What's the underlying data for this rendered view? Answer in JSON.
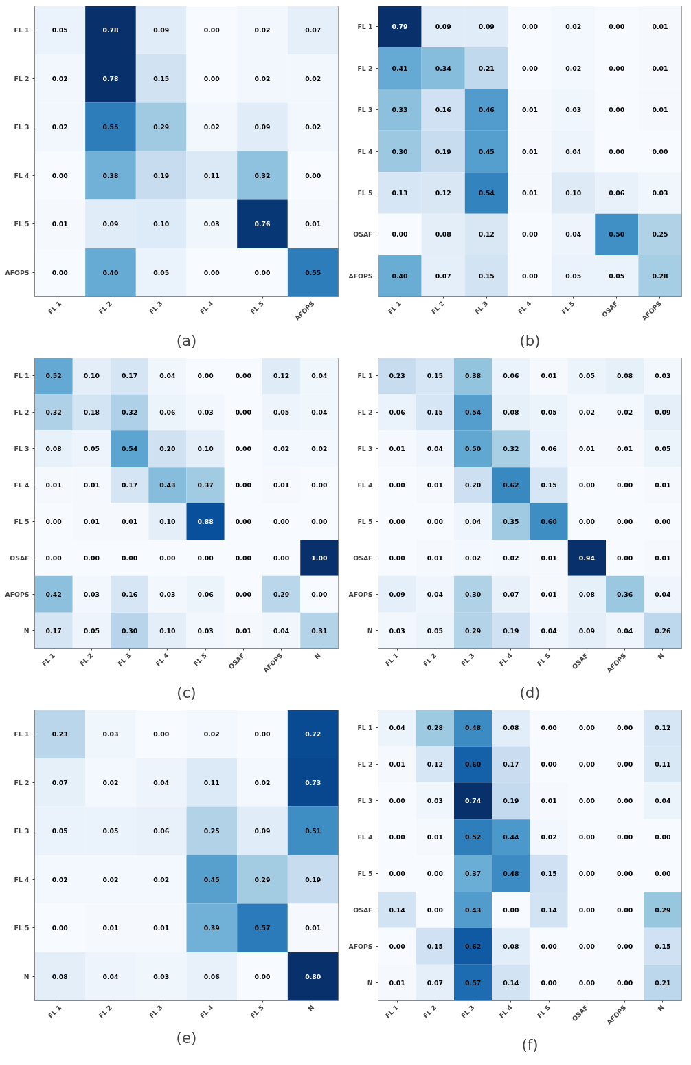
{
  "chart_data": [
    {
      "type": "heatmap",
      "title": "(a)",
      "categories": [
        "FL 1",
        "FL 2",
        "FL 3",
        "FL 4",
        "FL 5",
        "AFOPS"
      ],
      "y_categories": [
        "FL 1",
        "FL 2",
        "FL 3",
        "FL 4",
        "FL 5",
        "AFOPS"
      ],
      "cells": [
        [
          0.05,
          0.78,
          0.09,
          0.0,
          0.02,
          0.07
        ],
        [
          0.02,
          0.78,
          0.15,
          0.0,
          0.02,
          0.02
        ],
        [
          0.02,
          0.55,
          0.29,
          0.02,
          0.09,
          0.02
        ],
        [
          0.0,
          0.38,
          0.19,
          0.11,
          0.32,
          0.0
        ],
        [
          0.01,
          0.09,
          0.1,
          0.03,
          0.76,
          0.01
        ],
        [
          0.0,
          0.4,
          0.05,
          0.0,
          0.0,
          0.55
        ]
      ],
      "cell_labels": [
        [
          "0.05",
          "0.78",
          "0.09",
          "0.00",
          "0.02",
          "0.07"
        ],
        [
          "0.02",
          "0.78",
          "0.15",
          "0.00",
          "0.02",
          "0.02"
        ],
        [
          "0.02",
          "0.55",
          "0.29",
          "0.02",
          "0.09",
          "0.02"
        ],
        [
          "0.00",
          "0.38",
          "0.19",
          "0.11",
          "0.32",
          "0.00"
        ],
        [
          "0.01",
          "0.09",
          "0.10",
          "0.03",
          "0.76",
          "0.01"
        ],
        [
          "0.00",
          "0.40",
          "0.05",
          "0.00",
          "0.00",
          "0.55"
        ]
      ]
    },
    {
      "type": "heatmap",
      "title": "(b)",
      "categories": [
        "FL 1",
        "FL 2",
        "FL 3",
        "FL 4",
        "FL 5",
        "OSAF",
        "AFOPS"
      ],
      "y_categories": [
        "FL 1",
        "FL 2",
        "FL 3",
        "FL 4",
        "FL 5",
        "OSAF",
        "AFOPS"
      ],
      "cells": [
        [
          0.79,
          0.09,
          0.09,
          0.0,
          0.02,
          0.0,
          0.01
        ],
        [
          0.41,
          0.34,
          0.21,
          0.0,
          0.02,
          0.0,
          0.01
        ],
        [
          0.33,
          0.16,
          0.46,
          0.01,
          0.03,
          0.0,
          0.01
        ],
        [
          0.3,
          0.19,
          0.45,
          0.01,
          0.04,
          0.0,
          0.0
        ],
        [
          0.13,
          0.12,
          0.54,
          0.01,
          0.1,
          0.06,
          0.03
        ],
        [
          0.0,
          0.08,
          0.12,
          0.0,
          0.04,
          0.5,
          0.25
        ],
        [
          0.4,
          0.07,
          0.15,
          0.0,
          0.05,
          0.05,
          0.28
        ]
      ],
      "cell_labels": [
        [
          "0.79",
          "0.09",
          "0.09",
          "0.00",
          "0.02",
          "0.00",
          "0.01"
        ],
        [
          "0.41",
          "0.34",
          "0.21",
          "0.00",
          "0.02",
          "0.00",
          "0.01"
        ],
        [
          "0.33",
          "0.16",
          "0.46",
          "0.01",
          "0.03",
          "0.00",
          "0.01"
        ],
        [
          "0.30",
          "0.19",
          "0.45",
          "0.01",
          "0.04",
          "0.00",
          "0.00"
        ],
        [
          "0.13",
          "0.12",
          "0.54",
          "0.01",
          "0.10",
          "0.06",
          "0.03"
        ],
        [
          "0.00",
          "0.08",
          "0.12",
          "0.00",
          "0.04",
          "0.50",
          "0.25"
        ],
        [
          "0.40",
          "0.07",
          "0.15",
          "0.00",
          "0.05",
          "0.05",
          "0.28"
        ]
      ]
    },
    {
      "type": "heatmap",
      "title": "(c)",
      "categories": [
        "FL 1",
        "FL 2",
        "FL 3",
        "FL 4",
        "FL 5",
        "OSAF",
        "AFOPS",
        "N"
      ],
      "y_categories": [
        "FL 1",
        "FL 2",
        "FL 3",
        "FL 4",
        "FL 5",
        "OSAF",
        "AFOPS",
        "N"
      ],
      "cells": [
        [
          0.52,
          0.1,
          0.17,
          0.04,
          0.0,
          0.0,
          0.12,
          0.04
        ],
        [
          0.32,
          0.18,
          0.32,
          0.06,
          0.03,
          0.0,
          0.05,
          0.04
        ],
        [
          0.08,
          0.05,
          0.54,
          0.2,
          0.1,
          0.0,
          0.02,
          0.02
        ],
        [
          0.01,
          0.01,
          0.17,
          0.43,
          0.37,
          0.0,
          0.01,
          0.0
        ],
        [
          0.0,
          0.01,
          0.01,
          0.1,
          0.88,
          0.0,
          0.0,
          0.0
        ],
        [
          0.0,
          0.0,
          0.0,
          0.0,
          0.0,
          0.0,
          0.0,
          1.0
        ],
        [
          0.42,
          0.03,
          0.16,
          0.03,
          0.06,
          0.0,
          0.29,
          0.0
        ],
        [
          0.17,
          0.05,
          0.3,
          0.1,
          0.03,
          0.01,
          0.04,
          0.31
        ]
      ],
      "cell_labels": [
        [
          "0.52",
          "0.10",
          "0.17",
          "0.04",
          "0.00",
          "0.00",
          "0.12",
          "0.04"
        ],
        [
          "0.32",
          "0.18",
          "0.32",
          "0.06",
          "0.03",
          "0.00",
          "0.05",
          "0.04"
        ],
        [
          "0.08",
          "0.05",
          "0.54",
          "0.20",
          "0.10",
          "0.00",
          "0.02",
          "0.02"
        ],
        [
          "0.01",
          "0.01",
          "0.17",
          "0.43",
          "0.37",
          "0.00",
          "0.01",
          "0.00"
        ],
        [
          "0.00",
          "0.01",
          "0.01",
          "0.10",
          "0.88",
          "0.00",
          "0.00",
          "0.00"
        ],
        [
          "0.00",
          "0.00",
          "0.00",
          "0.00",
          "0.00",
          "0.00",
          "0.00",
          "1.00"
        ],
        [
          "0.42",
          "0.03",
          "0.16",
          "0.03",
          "0.06",
          "0.00",
          "0.29",
          "0.00"
        ],
        [
          "0.17",
          "0.05",
          "0.30",
          "0.10",
          "0.03",
          "0.01",
          "0.04",
          "0.31"
        ]
      ]
    },
    {
      "type": "heatmap",
      "title": "(d)",
      "categories": [
        "FL 1",
        "FL 2",
        "FL 3",
        "FL 4",
        "FL 5",
        "OSAF",
        "AFOPS",
        "N"
      ],
      "y_categories": [
        "FL 1",
        "FL 2",
        "FL 3",
        "FL 4",
        "FL 5",
        "OSAF",
        "AFOPS",
        "N"
      ],
      "cells": [
        [
          0.23,
          0.15,
          0.38,
          0.06,
          0.01,
          0.05,
          0.08,
          0.03
        ],
        [
          0.06,
          0.15,
          0.54,
          0.08,
          0.05,
          0.02,
          0.02,
          0.09
        ],
        [
          0.01,
          0.04,
          0.5,
          0.32,
          0.06,
          0.01,
          0.01,
          0.05
        ],
        [
          0.0,
          0.01,
          0.2,
          0.62,
          0.15,
          0.0,
          0.0,
          0.01
        ],
        [
          0.0,
          0.0,
          0.04,
          0.35,
          0.6,
          0.0,
          0.0,
          0.0
        ],
        [
          0.0,
          0.01,
          0.02,
          0.02,
          0.01,
          0.94,
          0.0,
          0.01
        ],
        [
          0.09,
          0.04,
          0.3,
          0.07,
          0.01,
          0.08,
          0.36,
          0.04
        ],
        [
          0.03,
          0.05,
          0.29,
          0.19,
          0.04,
          0.09,
          0.04,
          0.26
        ]
      ],
      "cell_labels": [
        [
          "0.23",
          "0.15",
          "0.38",
          "0.06",
          "0.01",
          "0.05",
          "0.08",
          "0.03"
        ],
        [
          "0.06",
          "0.15",
          "0.54",
          "0.08",
          "0.05",
          "0.02",
          "0.02",
          "0.09"
        ],
        [
          "0.01",
          "0.04",
          "0.50",
          "0.32",
          "0.06",
          "0.01",
          "0.01",
          "0.05"
        ],
        [
          "0.00",
          "0.01",
          "0.20",
          "0.62",
          "0.15",
          "0.00",
          "0.00",
          "0.01"
        ],
        [
          "0.00",
          "0.00",
          "0.04",
          "0.35",
          "0.60",
          "0.00",
          "0.00",
          "0.00"
        ],
        [
          "0.00",
          "0.01",
          "0.02",
          "0.02",
          "0.01",
          "0.94",
          "0.00",
          "0.01"
        ],
        [
          "0.09",
          "0.04",
          "0.30",
          "0.07",
          "0.01",
          "0.08",
          "0.36",
          "0.04"
        ],
        [
          "0.03",
          "0.05",
          "0.29",
          "0.19",
          "0.04",
          "0.09",
          "0.04",
          "0.26"
        ]
      ]
    },
    {
      "type": "heatmap",
      "title": "(e)",
      "categories": [
        "FL 1",
        "FL 2",
        "FL 3",
        "FL 4",
        "FL 5",
        "N"
      ],
      "y_categories": [
        "FL 1",
        "FL 2",
        "FL 3",
        "FL 4",
        "FL 5",
        "N"
      ],
      "cells": [
        [
          0.23,
          0.03,
          0.0,
          0.02,
          0.0,
          0.72
        ],
        [
          0.07,
          0.02,
          0.04,
          0.11,
          0.02,
          0.73
        ],
        [
          0.05,
          0.05,
          0.06,
          0.25,
          0.09,
          0.51
        ],
        [
          0.02,
          0.02,
          0.02,
          0.45,
          0.29,
          0.19
        ],
        [
          0.0,
          0.01,
          0.01,
          0.39,
          0.57,
          0.01
        ],
        [
          0.08,
          0.04,
          0.03,
          0.06,
          0.0,
          0.8
        ]
      ],
      "cell_labels": [
        [
          "0.23",
          "0.03",
          "0.00",
          "0.02",
          "0.00",
          "0.72"
        ],
        [
          "0.07",
          "0.02",
          "0.04",
          "0.11",
          "0.02",
          "0.73"
        ],
        [
          "0.05",
          "0.05",
          "0.06",
          "0.25",
          "0.09",
          "0.51"
        ],
        [
          "0.02",
          "0.02",
          "0.02",
          "0.45",
          "0.29",
          "0.19"
        ],
        [
          "0.00",
          "0.01",
          "0.01",
          "0.39",
          "0.57",
          "0.01"
        ],
        [
          "0.08",
          "0.04",
          "0.03",
          "0.06",
          "0.00",
          "0.80"
        ]
      ]
    },
    {
      "type": "heatmap",
      "title": "(f)",
      "categories": [
        "FL 1",
        "FL 2",
        "FL 3",
        "FL 4",
        "FL 5",
        "OSAF",
        "AFOPS",
        "N"
      ],
      "y_categories": [
        "FL 1",
        "FL 2",
        "FL 3",
        "FL 4",
        "FL 5",
        "OSAF",
        "AFOPS",
        "N"
      ],
      "cells": [
        [
          0.04,
          0.28,
          0.48,
          0.08,
          0.0,
          0.0,
          0.0,
          0.12
        ],
        [
          0.01,
          0.12,
          0.6,
          0.17,
          0.0,
          0.0,
          0.0,
          0.11
        ],
        [
          0.0,
          0.03,
          0.74,
          0.19,
          0.01,
          0.0,
          0.0,
          0.04
        ],
        [
          0.0,
          0.01,
          0.52,
          0.44,
          0.02,
          0.0,
          0.0,
          0.0
        ],
        [
          0.0,
          0.0,
          0.37,
          0.48,
          0.15,
          0.0,
          0.0,
          0.0
        ],
        [
          0.14,
          0.0,
          0.43,
          0.0,
          0.14,
          0.0,
          0.0,
          0.29
        ],
        [
          0.0,
          0.15,
          0.62,
          0.08,
          0.0,
          0.0,
          0.0,
          0.15
        ],
        [
          0.01,
          0.07,
          0.57,
          0.14,
          0.0,
          0.0,
          0.0,
          0.21
        ]
      ],
      "cell_labels": [
        [
          "0.04",
          "0.28",
          "0.48",
          "0.08",
          "0.00",
          "0.00",
          "0.00",
          "0.12"
        ],
        [
          "0.01",
          "0.12",
          "0.60",
          "0.17",
          "0.00",
          "0.00",
          "0.00",
          "0.11"
        ],
        [
          "0.00",
          "0.03",
          "0.74",
          "0.19",
          "0.01",
          "0.00",
          "0.00",
          "0.04"
        ],
        [
          "0.00",
          "0.01",
          "0.52",
          "0.44",
          "0.02",
          "0.00",
          "0.00",
          "0.00"
        ],
        [
          "0.00",
          "0.00",
          "0.37",
          "0.48",
          "0.15",
          "0.00",
          "0.00",
          "0.00"
        ],
        [
          "0.14",
          "0.00",
          "0.43",
          "0.00",
          "0.14",
          "0.00",
          "0.00",
          "0.29"
        ],
        [
          "0.00",
          "0.15",
          "0.62",
          "0.08",
          "0.00",
          "0.00",
          "0.00",
          "0.15"
        ],
        [
          "0.01",
          "0.07",
          "0.57",
          "0.14",
          "0.00",
          "0.00",
          "0.00",
          "0.21"
        ]
      ]
    }
  ]
}
